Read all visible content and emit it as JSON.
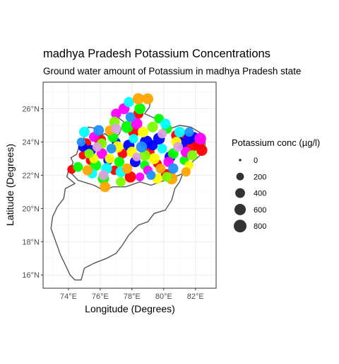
{
  "chart_data": {
    "type": "map-scatter",
    "title": "madhya Pradesh Potassium Concentrations",
    "subtitle": "Ground water amount of Potassium in madhya Pradesh state",
    "xlabel": "Longitude (Degrees)",
    "ylabel": "Latitude (Degrees)",
    "xlim": [
      72.4,
      83.3
    ],
    "ylim": [
      15.2,
      27.6
    ],
    "x_ticks": [
      74,
      76,
      78,
      80,
      82
    ],
    "x_tick_labels": [
      "74°E",
      "76°E",
      "78°E",
      "80°E",
      "82°E"
    ],
    "y_ticks": [
      16,
      18,
      20,
      22,
      24,
      26
    ],
    "y_tick_labels": [
      "16°N",
      "18°N",
      "20°N",
      "22°N",
      "24°N",
      "26°N"
    ],
    "grid": true,
    "legend_position": "right",
    "legend": {
      "title": "Potassium conc (µg/l)",
      "values": [
        0,
        200,
        400,
        600,
        800
      ],
      "labels": [
        "0",
        "200",
        "400",
        "600",
        "800"
      ]
    },
    "outline_color": "#555555",
    "point_colors": [
      "#ff0000",
      "#0000ff",
      "#00ff00",
      "#ff00ff",
      "#ffff00",
      "#00ffff",
      "#ffa500",
      "#7cfc00",
      "#1e90ff",
      "#dda0dd"
    ],
    "boundary_lonlat": [
      [
        74.0,
        22.3
      ],
      [
        74.3,
        22.75
      ],
      [
        74.15,
        23.05
      ],
      [
        74.5,
        23.25
      ],
      [
        74.7,
        23.8
      ],
      [
        74.95,
        24.2
      ],
      [
        75.25,
        24.9
      ],
      [
        75.8,
        24.8
      ],
      [
        75.7,
        24.3
      ],
      [
        76.3,
        24.5
      ],
      [
        76.8,
        24.1
      ],
      [
        77.2,
        24.5
      ],
      [
        77.5,
        25.2
      ],
      [
        77.1,
        25.5
      ],
      [
        77.3,
        26.0
      ],
      [
        78.0,
        26.4
      ],
      [
        78.5,
        26.8
      ],
      [
        79.2,
        26.7
      ],
      [
        79.1,
        26.1
      ],
      [
        78.8,
        25.7
      ],
      [
        79.5,
        25.4
      ],
      [
        80.3,
        25.3
      ],
      [
        80.4,
        24.8
      ],
      [
        81.0,
        25.0
      ],
      [
        81.7,
        24.9
      ],
      [
        82.4,
        24.5
      ],
      [
        82.6,
        24.1
      ],
      [
        82.6,
        23.6
      ],
      [
        82.3,
        23.2
      ],
      [
        81.8,
        22.8
      ],
      [
        81.7,
        22.4
      ],
      [
        81.2,
        22.1
      ],
      [
        80.7,
        21.9
      ],
      [
        79.8,
        21.6
      ],
      [
        79.2,
        21.4
      ],
      [
        78.5,
        21.6
      ],
      [
        77.6,
        21.3
      ],
      [
        76.8,
        21.3
      ],
      [
        76.2,
        21.1
      ],
      [
        75.6,
        21.4
      ],
      [
        74.6,
        21.7
      ],
      [
        74.0,
        22.3
      ]
    ],
    "states_outline_lonlat": [
      [
        74.0,
        22.3
      ],
      [
        73.9,
        21.9
      ],
      [
        74.4,
        21.5
      ],
      [
        73.8,
        21.2
      ],
      [
        73.7,
        20.6
      ],
      [
        73.3,
        20.1
      ],
      [
        73.0,
        19.5
      ],
      [
        72.9,
        18.8
      ],
      [
        73.2,
        18.0
      ],
      [
        73.5,
        17.2
      ],
      [
        73.8,
        16.6
      ],
      [
        74.1,
        16.0
      ],
      [
        74.4,
        15.7
      ],
      [
        74.8,
        15.7
      ],
      [
        75.0,
        16.4
      ],
      [
        75.6,
        16.7
      ],
      [
        76.4,
        17.0
      ],
      [
        77.0,
        17.3
      ],
      [
        77.4,
        17.8
      ],
      [
        77.8,
        18.4
      ],
      [
        78.4,
        19.0
      ],
      [
        79.0,
        19.2
      ],
      [
        79.4,
        19.7
      ],
      [
        80.1,
        19.9
      ],
      [
        80.5,
        20.5
      ],
      [
        80.7,
        21.2
      ],
      [
        81.0,
        21.6
      ],
      [
        81.2,
        22.1
      ]
    ],
    "series": [
      {
        "color": "#ff0000",
        "points": [
          [
            74.2,
            22.35,
            300
          ],
          [
            75.1,
            23.9,
            500
          ],
          [
            76.0,
            24.1,
            650
          ],
          [
            77.4,
            23.3,
            400
          ],
          [
            78.1,
            24.6,
            550
          ],
          [
            79.6,
            22.7,
            300
          ],
          [
            80.2,
            22.0,
            700
          ],
          [
            81.8,
            23.8,
            800
          ],
          [
            82.2,
            23.9,
            600
          ],
          [
            76.9,
            22.3,
            350
          ],
          [
            78.4,
            25.7,
            450
          ],
          [
            80.8,
            24.4,
            500
          ],
          [
            75.4,
            22.9,
            400
          ],
          [
            77.9,
            21.9,
            600
          ],
          [
            81.2,
            24.3,
            300
          ],
          [
            74.9,
            23.2,
            250
          ],
          [
            79.1,
            23.4,
            450
          ],
          [
            82.4,
            23.5,
            550
          ]
        ]
      },
      {
        "color": "#0000ff",
        "points": [
          [
            75.4,
            23.5,
            500
          ],
          [
            77.8,
            23.8,
            600
          ],
          [
            78.9,
            24.0,
            800
          ],
          [
            81.1,
            23.9,
            700
          ],
          [
            81.6,
            24.2,
            600
          ],
          [
            76.5,
            22.9,
            400
          ],
          [
            79.3,
            23.8,
            450
          ],
          [
            80.4,
            23.1,
            550
          ],
          [
            74.9,
            23.7,
            350
          ],
          [
            78.2,
            22.8,
            500
          ],
          [
            81.9,
            24.3,
            400
          ],
          [
            77.0,
            24.0,
            300
          ],
          [
            79.7,
            24.2,
            650
          ]
        ]
      },
      {
        "color": "#00ff00",
        "points": [
          [
            75.7,
            22.6,
            600
          ],
          [
            76.8,
            24.3,
            500
          ],
          [
            77.2,
            22.8,
            450
          ],
          [
            78.5,
            26.0,
            550
          ],
          [
            79.7,
            25.4,
            400
          ],
          [
            80.6,
            23.3,
            500
          ],
          [
            81.3,
            22.9,
            350
          ],
          [
            76.2,
            21.8,
            600
          ],
          [
            77.7,
            24.9,
            700
          ],
          [
            80.2,
            24.8,
            450
          ],
          [
            78.8,
            22.6,
            350
          ],
          [
            74.6,
            22.5,
            400
          ]
        ]
      },
      {
        "color": "#ff00ff",
        "points": [
          [
            76.1,
            23.3,
            500
          ],
          [
            77.5,
            26.0,
            550
          ],
          [
            78.3,
            25.1,
            600
          ],
          [
            80.3,
            22.8,
            450
          ],
          [
            81.4,
            23.4,
            500
          ],
          [
            79.0,
            22.3,
            350
          ],
          [
            75.6,
            24.3,
            400
          ],
          [
            77.0,
            25.7,
            450
          ],
          [
            82.3,
            24.2,
            650
          ],
          [
            78.5,
            21.9,
            300
          ]
        ]
      },
      {
        "color": "#ffff00",
        "points": [
          [
            79.4,
            23.0,
            550
          ],
          [
            77.1,
            23.7,
            600
          ],
          [
            80.8,
            24.0,
            450
          ],
          [
            76.6,
            23.0,
            400
          ],
          [
            78.7,
            24.6,
            500
          ],
          [
            79.6,
            21.8,
            450
          ],
          [
            75.6,
            23.0,
            350
          ],
          [
            81.6,
            22.6,
            300
          ],
          [
            78.0,
            23.4,
            500
          ]
        ]
      },
      {
        "color": "#00ffff",
        "points": [
          [
            75.0,
            24.6,
            500
          ],
          [
            77.8,
            26.4,
            450
          ],
          [
            76.4,
            22.4,
            550
          ],
          [
            79.9,
            23.6,
            400
          ],
          [
            81.0,
            24.6,
            500
          ],
          [
            75.5,
            22.1,
            400
          ],
          [
            78.1,
            24.2,
            350
          ],
          [
            80.1,
            25.1,
            450
          ],
          [
            77.3,
            22.2,
            500
          ]
        ]
      },
      {
        "color": "#ffa500",
        "points": [
          [
            75.2,
            22.3,
            450
          ],
          [
            76.3,
            21.3,
            500
          ],
          [
            78.4,
            26.6,
            600
          ],
          [
            79.0,
            26.6,
            550
          ],
          [
            80.5,
            21.8,
            650
          ],
          [
            77.7,
            22.4,
            450
          ],
          [
            79.8,
            22.4,
            400
          ],
          [
            81.4,
            22.2,
            350
          ],
          [
            76.6,
            24.7,
            400
          ]
        ]
      },
      {
        "color": "#7cfc00",
        "points": [
          [
            76.9,
            25.2,
            500
          ],
          [
            78.8,
            23.2,
            550
          ],
          [
            80.2,
            21.9,
            400
          ],
          [
            76.1,
            23.9,
            450
          ],
          [
            75.3,
            23.3,
            350
          ],
          [
            79.3,
            24.9,
            500
          ],
          [
            77.3,
            21.6,
            400
          ],
          [
            81.8,
            23.2,
            450
          ]
        ]
      },
      {
        "color": "#1e90ff",
        "points": [
          [
            75.9,
            24.7,
            500
          ],
          [
            77.9,
            25.5,
            400
          ],
          [
            80.6,
            22.4,
            450
          ],
          [
            81.6,
            24.6,
            350
          ],
          [
            76.7,
            23.6,
            400
          ],
          [
            78.6,
            23.7,
            550
          ],
          [
            74.8,
            24.0,
            300
          ],
          [
            79.2,
            22.0,
            350
          ]
        ]
      },
      {
        "color": "#dda0dd",
        "points": [
          [
            76.2,
            22.0,
            400
          ],
          [
            77.0,
            24.8,
            450
          ],
          [
            79.9,
            24.5,
            350
          ],
          [
            78.3,
            23.1,
            300
          ],
          [
            80.9,
            23.7,
            400
          ],
          [
            75.8,
            23.7,
            350
          ]
        ]
      }
    ]
  }
}
